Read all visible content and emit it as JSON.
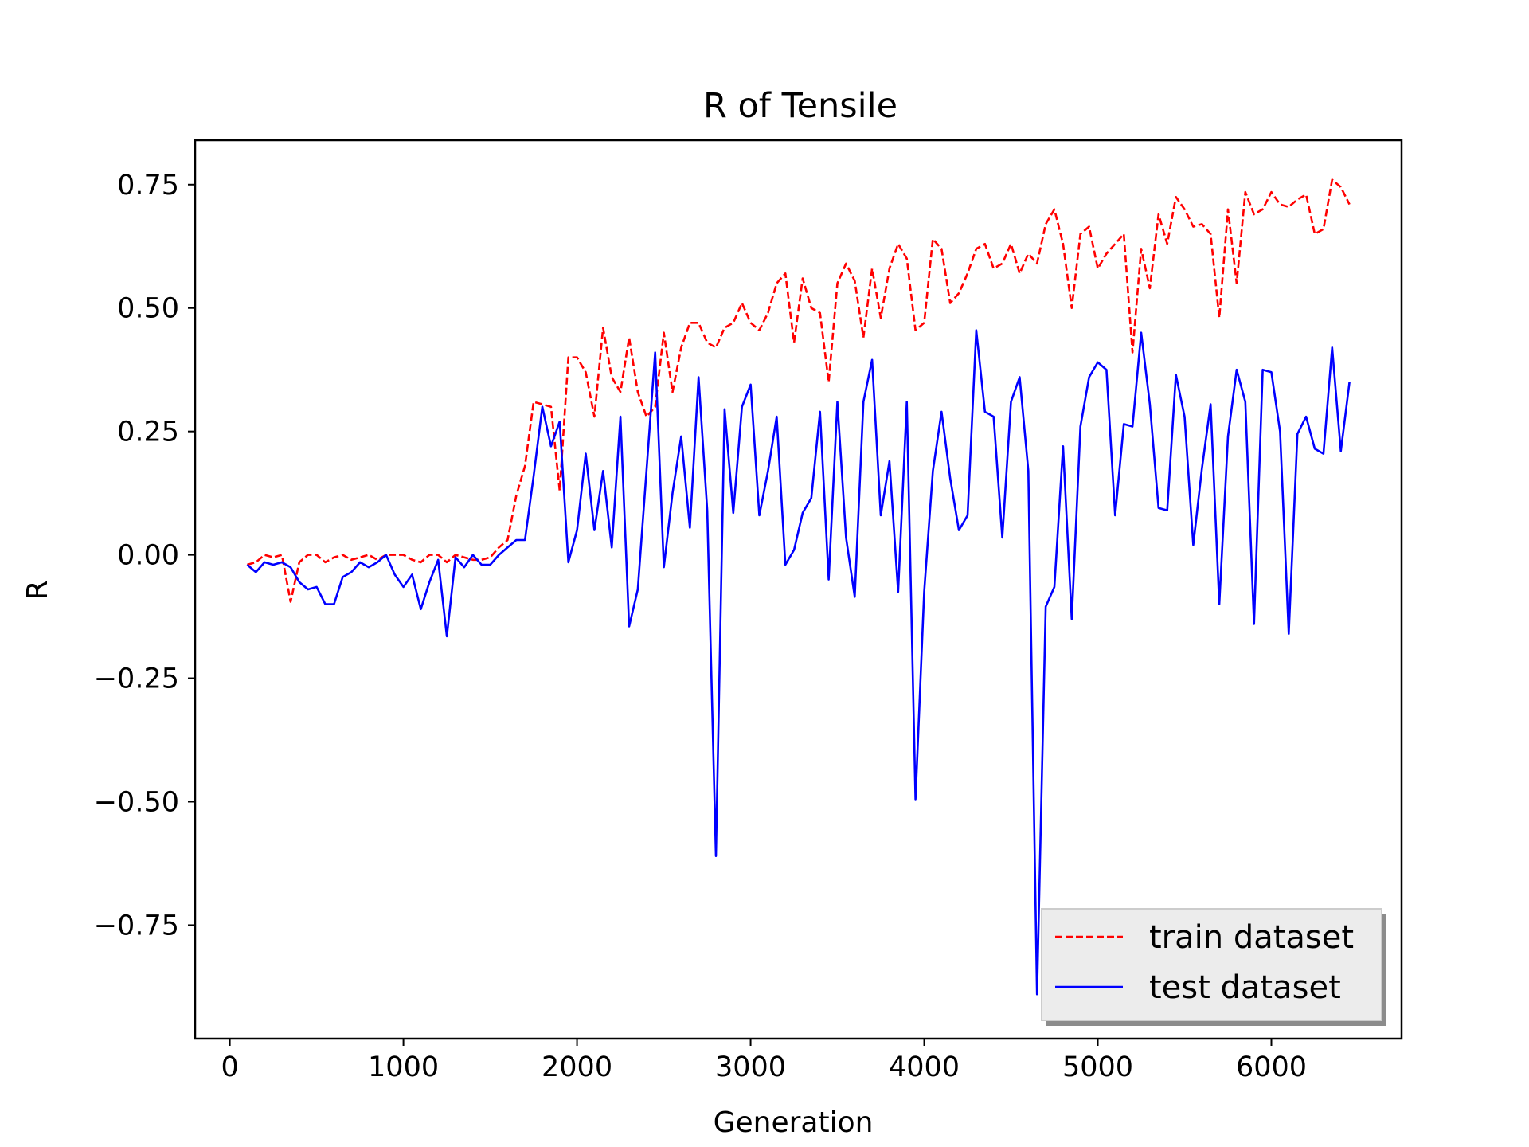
{
  "chart_data": {
    "type": "line",
    "title": "R of Tensile",
    "xlabel": "Generation",
    "ylabel": "R",
    "xlim": [
      -200,
      6750
    ],
    "ylim": [
      -0.98,
      0.84
    ],
    "xticks": [
      0,
      1000,
      2000,
      3000,
      4000,
      5000,
      6000
    ],
    "xtick_labels": [
      "0",
      "1000",
      "2000",
      "3000",
      "4000",
      "5000",
      "6000"
    ],
    "yticks": [
      0.75,
      0.5,
      0.25,
      0.0,
      -0.25,
      -0.5,
      -0.75
    ],
    "ytick_labels": [
      "0.75",
      "0.50",
      "0.25",
      "0.00",
      "−0.25",
      "−0.50",
      "−0.75"
    ],
    "grid": false,
    "legend_position": "lower-right",
    "x": [
      100,
      150,
      200,
      250,
      300,
      350,
      400,
      450,
      500,
      550,
      600,
      650,
      700,
      750,
      800,
      850,
      900,
      950,
      1000,
      1050,
      1100,
      1150,
      1200,
      1250,
      1300,
      1350,
      1400,
      1450,
      1500,
      1550,
      1600,
      1650,
      1700,
      1750,
      1800,
      1850,
      1900,
      1950,
      2000,
      2050,
      2100,
      2150,
      2200,
      2250,
      2300,
      2350,
      2400,
      2450,
      2500,
      2550,
      2600,
      2650,
      2700,
      2750,
      2800,
      2850,
      2900,
      2950,
      3000,
      3050,
      3100,
      3150,
      3200,
      3250,
      3300,
      3350,
      3400,
      3450,
      3500,
      3550,
      3600,
      3650,
      3700,
      3750,
      3800,
      3850,
      3900,
      3950,
      4000,
      4050,
      4100,
      4150,
      4200,
      4250,
      4300,
      4350,
      4400,
      4450,
      4500,
      4550,
      4600,
      4650,
      4700,
      4750,
      4800,
      4850,
      4900,
      4950,
      5000,
      5050,
      5100,
      5150,
      5200,
      5250,
      5300,
      5350,
      5400,
      5450,
      5500,
      5550,
      5600,
      5650,
      5700,
      5750,
      5800,
      5850,
      5900,
      5950,
      6000,
      6050,
      6100,
      6150,
      6200,
      6250,
      6300,
      6350,
      6400,
      6450
    ],
    "series": [
      {
        "name": "train dataset",
        "color": "#ff0000",
        "dash": "dashed",
        "values": [
          -0.02,
          -0.015,
          -0.0,
          -0.005,
          0.0,
          -0.095,
          -0.015,
          -0.0,
          0.0,
          -0.015,
          -0.005,
          0.0,
          -0.01,
          -0.005,
          0.0,
          -0.01,
          0.0,
          0.0,
          0.0,
          -0.01,
          -0.015,
          -0.0,
          0.0,
          -0.015,
          0.0,
          -0.005,
          -0.01,
          -0.01,
          -0.005,
          0.015,
          0.03,
          0.12,
          0.18,
          0.31,
          0.305,
          0.3,
          0.13,
          0.4,
          0.4,
          0.37,
          0.28,
          0.46,
          0.36,
          0.33,
          0.44,
          0.33,
          0.28,
          0.3,
          0.45,
          0.33,
          0.42,
          0.47,
          0.47,
          0.43,
          0.42,
          0.46,
          0.47,
          0.51,
          0.47,
          0.455,
          0.49,
          0.55,
          0.57,
          0.43,
          0.56,
          0.5,
          0.49,
          0.35,
          0.55,
          0.59,
          0.555,
          0.44,
          0.58,
          0.48,
          0.58,
          0.63,
          0.6,
          0.455,
          0.47,
          0.64,
          0.62,
          0.51,
          0.53,
          0.57,
          0.62,
          0.63,
          0.58,
          0.59,
          0.63,
          0.57,
          0.61,
          0.59,
          0.67,
          0.7,
          0.63,
          0.5,
          0.65,
          0.665,
          0.58,
          0.61,
          0.63,
          0.65,
          0.41,
          0.62,
          0.54,
          0.69,
          0.63,
          0.725,
          0.7,
          0.665,
          0.67,
          0.65,
          0.48,
          0.7,
          0.55,
          0.735,
          0.69,
          0.7,
          0.735,
          0.71,
          0.705,
          0.72,
          0.73,
          0.65,
          0.66,
          0.76,
          0.745,
          0.71
        ]
      },
      {
        "name": "test dataset",
        "color": "#0000ff",
        "dash": "solid",
        "values": [
          -0.02,
          -0.035,
          -0.015,
          -0.02,
          -0.015,
          -0.025,
          -0.055,
          -0.07,
          -0.065,
          -0.1,
          -0.1,
          -0.045,
          -0.035,
          -0.015,
          -0.025,
          -0.015,
          0.0,
          -0.04,
          -0.065,
          -0.04,
          -0.11,
          -0.055,
          -0.01,
          -0.165,
          -0.005,
          -0.025,
          0.0,
          -0.02,
          -0.02,
          0.0,
          0.015,
          0.03,
          0.03,
          0.16,
          0.3,
          0.22,
          0.27,
          -0.015,
          0.05,
          0.205,
          0.05,
          0.17,
          0.015,
          0.28,
          -0.145,
          -0.07,
          0.17,
          0.41,
          -0.025,
          0.125,
          0.24,
          0.055,
          0.36,
          0.09,
          -0.61,
          0.295,
          0.085,
          0.3,
          0.345,
          0.08,
          0.17,
          0.28,
          -0.02,
          0.01,
          0.085,
          0.115,
          0.29,
          -0.05,
          0.31,
          0.035,
          -0.085,
          0.31,
          0.395,
          0.08,
          0.19,
          -0.075,
          0.31,
          -0.495,
          -0.075,
          0.17,
          0.29,
          0.155,
          0.05,
          0.08,
          0.455,
          0.29,
          0.28,
          0.035,
          0.31,
          0.36,
          0.17,
          -0.89,
          -0.105,
          -0.065,
          0.22,
          -0.13,
          0.26,
          0.36,
          0.39,
          0.375,
          0.08,
          0.265,
          0.26,
          0.45,
          0.305,
          0.095,
          0.09,
          0.365,
          0.28,
          0.02,
          0.175,
          0.305,
          -0.1,
          0.24,
          0.375,
          0.31,
          -0.14,
          0.375,
          0.37,
          0.25,
          -0.16,
          0.245,
          0.28,
          0.215,
          0.205,
          0.42,
          0.21,
          0.35
        ]
      }
    ]
  }
}
